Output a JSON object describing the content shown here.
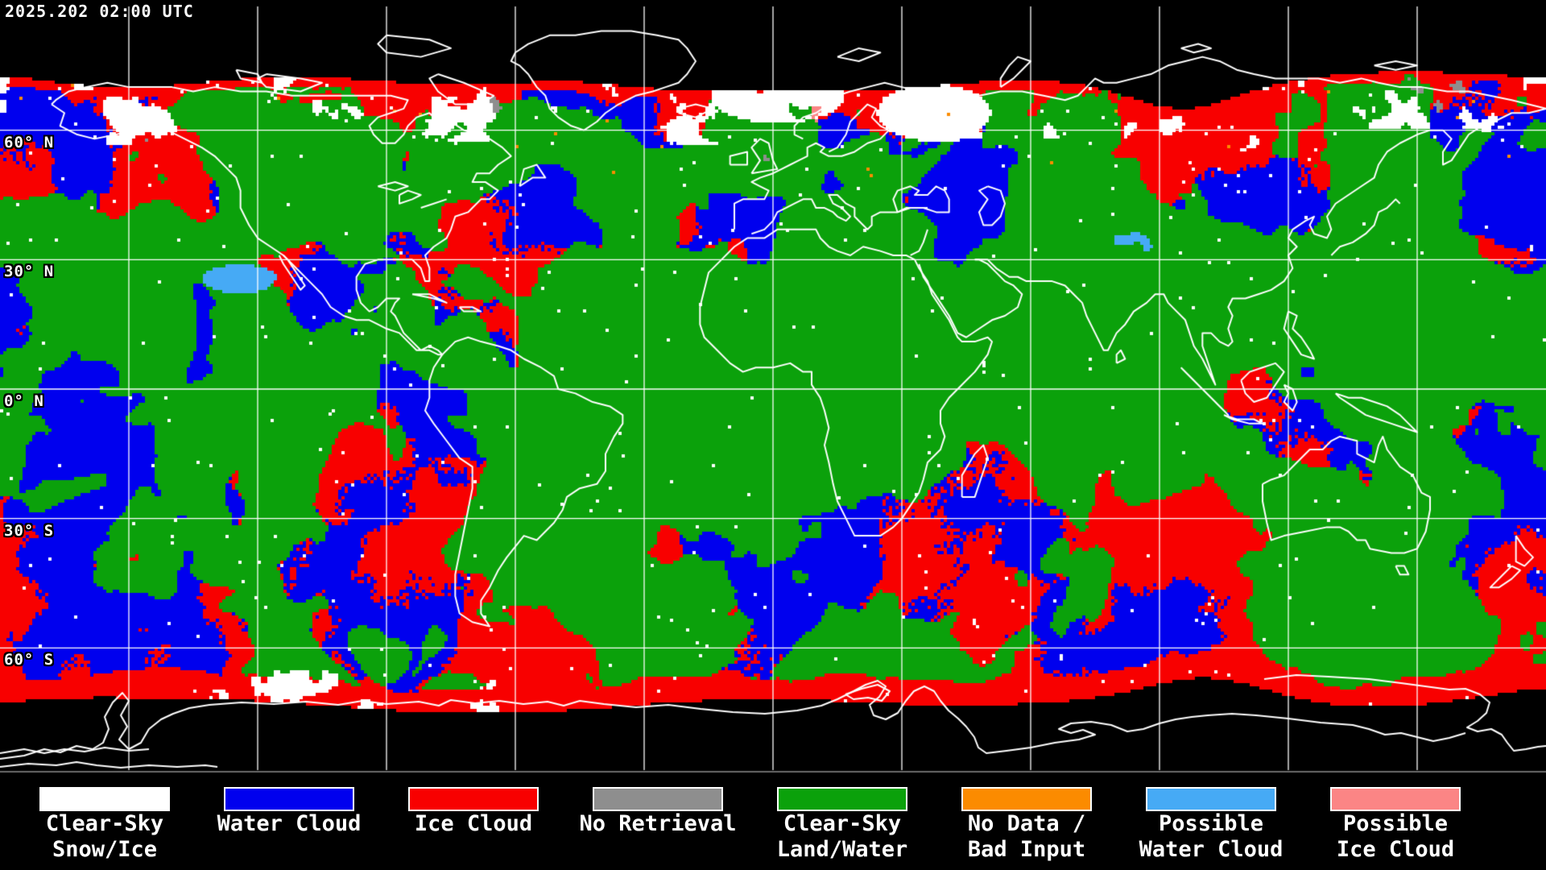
{
  "header": {
    "timestamp": "2025.202 02:00 UTC"
  },
  "map": {
    "background_color": "#000000",
    "graticule": {
      "line_color": "#ffffff",
      "lon_spacing_deg": 30,
      "lat_spacing_deg": 30
    },
    "coastline_color": "#ffffff",
    "separator_color": "#6b6b6b",
    "latitude_labels": [
      {
        "text": "60° N",
        "lat": 60
      },
      {
        "text": "30° N",
        "lat": 30
      },
      {
        "text": "0° N",
        "lat": 0
      },
      {
        "text": "30° S",
        "lat": -30
      },
      {
        "text": "60° S",
        "lat": -60
      }
    ]
  },
  "legend": {
    "items": [
      {
        "id": "clear-sky-snow-ice",
        "label_lines": [
          "Clear-Sky",
          "Snow/Ice"
        ],
        "color": "#ffffff"
      },
      {
        "id": "water-cloud",
        "label_lines": [
          "Water Cloud"
        ],
        "color": "#0000ee"
      },
      {
        "id": "ice-cloud",
        "label_lines": [
          "Ice Cloud"
        ],
        "color": "#f80000"
      },
      {
        "id": "no-retrieval",
        "label_lines": [
          "No Retrieval"
        ],
        "color": "#8e8e8e"
      },
      {
        "id": "clear-sky-land-water",
        "label_lines": [
          "Clear-Sky",
          "Land/Water"
        ],
        "color": "#0ba10b"
      },
      {
        "id": "no-data-bad-input",
        "label_lines": [
          "No Data /",
          "Bad Input"
        ],
        "color": "#fb8b00"
      },
      {
        "id": "possible-water-cloud",
        "label_lines": [
          "Possible",
          "Water Cloud"
        ],
        "color": "#46aaf5"
      },
      {
        "id": "possible-ice-cloud",
        "label_lines": [
          "Possible",
          "Ice Cloud"
        ],
        "color": "#fb8585"
      }
    ]
  }
}
